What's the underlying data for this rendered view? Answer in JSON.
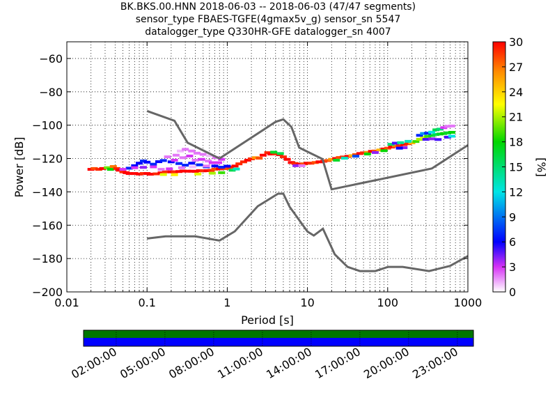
{
  "titles": [
    "BK.BKS.00.HNN   2018-06-03 -- 2018-06-03  (47/47 segments)",
    "sensor_type FBAES-TGFE(4gmax5v_g) sensor_sn 5547",
    "datalogger_type Q330HR-GFE datalogger_sn 4007"
  ],
  "chart_data": {
    "type": "heatmap",
    "xlabel": "Period [s]",
    "ylabel": "Power [dB]",
    "x_scale": "log",
    "xlim": [
      0.01,
      1000
    ],
    "ylim": [
      -200,
      -50
    ],
    "x_ticks": [
      {
        "value": 0.01,
        "label": "0.01"
      },
      {
        "value": 0.1,
        "label": "0.1"
      },
      {
        "value": 1,
        "label": "1"
      },
      {
        "value": 10,
        "label": "10"
      },
      {
        "value": 100,
        "label": "100"
      },
      {
        "value": 1000,
        "label": "1000"
      }
    ],
    "y_ticks": [
      -60,
      -80,
      -100,
      -120,
      -140,
      -160,
      -180,
      -200
    ],
    "grid": "dotted",
    "colorbar": {
      "label": "[%]",
      "min": 0,
      "max": 30,
      "ticks": [
        0,
        3,
        6,
        9,
        12,
        15,
        18,
        21,
        24,
        27,
        30
      ]
    },
    "noise_models": [
      {
        "points": [
          [
            0.1,
            -91.5
          ],
          [
            0.22,
            -97.4
          ],
          [
            0.32,
            -110.5
          ],
          [
            0.8,
            -120
          ],
          [
            4,
            -98
          ],
          [
            5,
            -96.5
          ],
          [
            6.3,
            -101
          ],
          [
            7.9,
            -113.5
          ],
          [
            15.4,
            -120.3
          ],
          [
            20,
            -138.5
          ],
          [
            354.8,
            -126
          ],
          [
            1000,
            -112
          ]
        ]
      },
      {
        "points": [
          [
            0.1,
            -168
          ],
          [
            0.17,
            -166.7
          ],
          [
            0.4,
            -166.7
          ],
          [
            0.8,
            -169.2
          ],
          [
            1.24,
            -163.7
          ],
          [
            2.4,
            -148.6
          ],
          [
            4.3,
            -141.1
          ],
          [
            5,
            -141.1
          ],
          [
            6,
            -149
          ],
          [
            10,
            -163.8
          ],
          [
            12,
            -166.2
          ],
          [
            15.6,
            -162.1
          ],
          [
            21.9,
            -177.5
          ],
          [
            31.6,
            -185
          ],
          [
            45,
            -187.5
          ],
          [
            70,
            -187.5
          ],
          [
            101,
            -185
          ],
          [
            154,
            -185
          ],
          [
            328,
            -187.5
          ],
          [
            600,
            -184.4
          ],
          [
            1000,
            -178.5
          ]
        ]
      }
    ],
    "psd_cells": [
      {
        "period": 0.02,
        "db": -126.5,
        "pct": 30
      },
      {
        "period": 0.022,
        "db": -126,
        "pct": 28
      },
      {
        "period": 0.025,
        "db": -126.5,
        "pct": 29
      },
      {
        "period": 0.028,
        "db": -126,
        "pct": 30
      },
      {
        "period": 0.032,
        "db": -125.5,
        "pct": 20
      },
      {
        "period": 0.035,
        "db": -126.5,
        "pct": 18
      },
      {
        "period": 0.038,
        "db": -124.8,
        "pct": 27
      },
      {
        "period": 0.042,
        "db": -126,
        "pct": 29
      },
      {
        "period": 0.045,
        "db": -127,
        "pct": 30
      },
      {
        "period": 0.05,
        "db": -128,
        "pct": 29
      },
      {
        "period": 0.055,
        "db": -128.5,
        "pct": 30
      },
      {
        "period": 0.06,
        "db": -129,
        "pct": 30
      },
      {
        "period": 0.07,
        "db": -129,
        "pct": 30
      },
      {
        "period": 0.08,
        "db": -129.3,
        "pct": 30
      },
      {
        "period": 0.09,
        "db": -129,
        "pct": 29
      },
      {
        "period": 0.1,
        "db": -129,
        "pct": 30
      },
      {
        "period": 0.11,
        "db": -129.4,
        "pct": 30
      },
      {
        "period": 0.13,
        "db": -129.2,
        "pct": 29
      },
      {
        "period": 0.15,
        "db": -128.6,
        "pct": 30
      },
      {
        "period": 0.17,
        "db": -128,
        "pct": 29
      },
      {
        "period": 0.2,
        "db": -128,
        "pct": 30
      },
      {
        "period": 0.22,
        "db": -128,
        "pct": 29
      },
      {
        "period": 0.25,
        "db": -127.8,
        "pct": 30
      },
      {
        "period": 0.28,
        "db": -127.5,
        "pct": 30
      },
      {
        "period": 0.32,
        "db": -127.6,
        "pct": 30
      },
      {
        "period": 0.36,
        "db": -127.6,
        "pct": 30
      },
      {
        "period": 0.4,
        "db": -127.7,
        "pct": 30
      },
      {
        "period": 0.45,
        "db": -127.3,
        "pct": 30
      },
      {
        "period": 0.5,
        "db": -127.4,
        "pct": 29
      },
      {
        "period": 0.56,
        "db": -127.3,
        "pct": 30
      },
      {
        "period": 0.63,
        "db": -127.1,
        "pct": 29
      },
      {
        "period": 0.7,
        "db": -126.4,
        "pct": 28
      },
      {
        "period": 0.8,
        "db": -126.2,
        "pct": 30
      },
      {
        "period": 0.9,
        "db": -126,
        "pct": 29
      },
      {
        "period": 1.0,
        "db": -126,
        "pct": 28
      },
      {
        "period": 1.1,
        "db": -125.2,
        "pct": 29
      },
      {
        "period": 1.25,
        "db": -124.5,
        "pct": 30
      },
      {
        "period": 1.4,
        "db": -123.2,
        "pct": 29
      },
      {
        "period": 1.6,
        "db": -122,
        "pct": 29
      },
      {
        "period": 1.8,
        "db": -121,
        "pct": 30
      },
      {
        "period": 2.0,
        "db": -120.2,
        "pct": 29
      },
      {
        "period": 2.25,
        "db": -119.5,
        "pct": 26
      },
      {
        "period": 2.5,
        "db": -119.8,
        "pct": 28
      },
      {
        "period": 2.8,
        "db": -118,
        "pct": 30
      },
      {
        "period": 3.2,
        "db": -116.5,
        "pct": 29
      },
      {
        "period": 3.5,
        "db": -117.3,
        "pct": 30
      },
      {
        "period": 4.0,
        "db": -117.2,
        "pct": 29
      },
      {
        "period": 4.5,
        "db": -117.7,
        "pct": 30
      },
      {
        "period": 5.0,
        "db": -119,
        "pct": 29
      },
      {
        "period": 5.6,
        "db": -120.5,
        "pct": 30
      },
      {
        "period": 6.3,
        "db": -122.4,
        "pct": 30
      },
      {
        "period": 7.0,
        "db": -123,
        "pct": 29
      },
      {
        "period": 8.0,
        "db": -123.4,
        "pct": 30
      },
      {
        "period": 9.0,
        "db": -123.2,
        "pct": 28
      },
      {
        "period": 10,
        "db": -122.8,
        "pct": 30
      },
      {
        "period": 11,
        "db": -122.8,
        "pct": 29
      },
      {
        "period": 12.5,
        "db": -122.4,
        "pct": 28
      },
      {
        "period": 14,
        "db": -122,
        "pct": 30
      },
      {
        "period": 16,
        "db": -121.6,
        "pct": 30
      },
      {
        "period": 18,
        "db": -121.2,
        "pct": 28
      },
      {
        "period": 20,
        "db": -120.5,
        "pct": 26
      },
      {
        "period": 22.5,
        "db": -120,
        "pct": 30
      },
      {
        "period": 25,
        "db": -119.4,
        "pct": 28
      },
      {
        "period": 28,
        "db": -119.1,
        "pct": 29
      },
      {
        "period": 32,
        "db": -118.7,
        "pct": 30
      },
      {
        "period": 36,
        "db": -118.3,
        "pct": 25
      },
      {
        "period": 40,
        "db": -117.7,
        "pct": 28
      },
      {
        "period": 45,
        "db": -117,
        "pct": 30
      },
      {
        "period": 50,
        "db": -116.6,
        "pct": 29
      },
      {
        "period": 56,
        "db": -116.3,
        "pct": 26
      },
      {
        "period": 63,
        "db": -115.7,
        "pct": 30
      },
      {
        "period": 70,
        "db": -115.5,
        "pct": 28
      },
      {
        "period": 80,
        "db": -114.9,
        "pct": 25
      },
      {
        "period": 90,
        "db": -114.3,
        "pct": 30
      },
      {
        "period": 100,
        "db": -113.8,
        "pct": 28
      },
      {
        "period": 112,
        "db": -113.1,
        "pct": 30
      },
      {
        "period": 125,
        "db": -112.6,
        "pct": 27
      },
      {
        "period": 140,
        "db": -112.3,
        "pct": 29
      },
      {
        "period": 160,
        "db": -111.6,
        "pct": 30
      },
      {
        "period": 180,
        "db": -111.1,
        "pct": 29
      },
      {
        "period": 200,
        "db": -110.6,
        "pct": 25
      },
      {
        "period": 225,
        "db": -109.8,
        "pct": 19
      },
      {
        "period": 250,
        "db": -108.5,
        "pct": 21
      },
      {
        "period": 280,
        "db": -107.4,
        "pct": 22
      },
      {
        "period": 315,
        "db": -106.7,
        "pct": 19
      },
      {
        "period": 355,
        "db": -106.2,
        "pct": 17
      },
      {
        "period": 400,
        "db": -105.6,
        "pct": 16
      },
      {
        "period": 450,
        "db": -105.3,
        "pct": 17
      },
      {
        "period": 500,
        "db": -105,
        "pct": 18
      },
      {
        "period": 560,
        "db": -104.6,
        "pct": 17
      },
      {
        "period": 630,
        "db": -104.3,
        "pct": 18
      },
      {
        "period": 0.06,
        "db": -125.8,
        "pct": 7
      },
      {
        "period": 0.07,
        "db": -124.3,
        "pct": 6
      },
      {
        "period": 0.08,
        "db": -122.8,
        "pct": 6
      },
      {
        "period": 0.09,
        "db": -121.5,
        "pct": 7
      },
      {
        "period": 0.1,
        "db": -122.2,
        "pct": 6
      },
      {
        "period": 0.12,
        "db": -123.4,
        "pct": 7
      },
      {
        "period": 0.14,
        "db": -121.9,
        "pct": 6
      },
      {
        "period": 0.16,
        "db": -121.2,
        "pct": 7
      },
      {
        "period": 0.2,
        "db": -122,
        "pct": 6
      },
      {
        "period": 0.25,
        "db": -123,
        "pct": 7
      },
      {
        "period": 0.3,
        "db": -124,
        "pct": 7
      },
      {
        "period": 0.36,
        "db": -122.8,
        "pct": 6
      },
      {
        "period": 0.45,
        "db": -123.8,
        "pct": 7
      },
      {
        "period": 0.55,
        "db": -125,
        "pct": 7
      },
      {
        "period": 0.7,
        "db": -124.5,
        "pct": 6
      },
      {
        "period": 0.85,
        "db": -125.2,
        "pct": 7
      },
      {
        "period": 1.0,
        "db": -124.6,
        "pct": 6
      },
      {
        "period": 0.05,
        "db": -126.5,
        "pct": 3
      },
      {
        "period": 0.07,
        "db": -125.5,
        "pct": 3
      },
      {
        "period": 0.09,
        "db": -125.3,
        "pct": 4
      },
      {
        "period": 0.12,
        "db": -125,
        "pct": 3
      },
      {
        "period": 0.15,
        "db": -126.5,
        "pct": 2
      },
      {
        "period": 0.19,
        "db": -126.2,
        "pct": 3
      },
      {
        "period": 0.23,
        "db": -118,
        "pct": 2
      },
      {
        "period": 0.26,
        "db": -115.5,
        "pct": 1
      },
      {
        "period": 0.3,
        "db": -114.5,
        "pct": 2
      },
      {
        "period": 0.36,
        "db": -115.5,
        "pct": 2
      },
      {
        "period": 0.42,
        "db": -116.8,
        "pct": 2
      },
      {
        "period": 0.5,
        "db": -117.5,
        "pct": 2
      },
      {
        "period": 0.6,
        "db": -118.3,
        "pct": 1
      },
      {
        "period": 0.72,
        "db": -119.5,
        "pct": 2
      },
      {
        "period": 0.85,
        "db": -120.5,
        "pct": 3
      },
      {
        "period": 0.18,
        "db": -119,
        "pct": 2
      },
      {
        "period": 0.22,
        "db": -121,
        "pct": 3
      },
      {
        "period": 0.28,
        "db": -119.5,
        "pct": 2
      },
      {
        "period": 0.34,
        "db": -118.5,
        "pct": 3
      },
      {
        "period": 0.4,
        "db": -121,
        "pct": 2
      },
      {
        "period": 0.48,
        "db": -120.5,
        "pct": 3
      },
      {
        "period": 0.58,
        "db": -121.5,
        "pct": 2
      },
      {
        "period": 0.27,
        "db": -125.5,
        "pct": 2
      },
      {
        "period": 0.37,
        "db": -125,
        "pct": 1
      },
      {
        "period": 0.55,
        "db": -124.5,
        "pct": 2
      },
      {
        "period": 0.65,
        "db": -122.5,
        "pct": 3
      },
      {
        "period": 0.78,
        "db": -122.5,
        "pct": 3
      },
      {
        "period": 1.15,
        "db": -127,
        "pct": 16
      },
      {
        "period": 1.3,
        "db": -126.3,
        "pct": 13
      },
      {
        "period": 0.16,
        "db": -129.6,
        "pct": 22
      },
      {
        "period": 0.22,
        "db": -129.7,
        "pct": 23
      },
      {
        "period": 0.43,
        "db": -129.3,
        "pct": 22
      },
      {
        "period": 0.65,
        "db": -128.8,
        "pct": 21
      },
      {
        "period": 0.85,
        "db": -128.5,
        "pct": 19
      },
      {
        "period": 7.2,
        "db": -124.3,
        "pct": 4
      },
      {
        "period": 8.5,
        "db": -124.3,
        "pct": 2
      },
      {
        "period": 3.8,
        "db": -116.2,
        "pct": 17
      },
      {
        "period": 4.6,
        "db": -117,
        "pct": 16
      },
      {
        "period": 23,
        "db": -121,
        "pct": 17
      },
      {
        "period": 29,
        "db": -119.8,
        "pct": 13
      },
      {
        "period": 40,
        "db": -118.6,
        "pct": 8
      },
      {
        "period": 56,
        "db": -117.3,
        "pct": 18
      },
      {
        "period": 70,
        "db": -116.4,
        "pct": 4
      },
      {
        "period": 90,
        "db": -115.3,
        "pct": 18
      },
      {
        "period": 110,
        "db": -111.5,
        "pct": 15
      },
      {
        "period": 125,
        "db": -110.8,
        "pct": 5
      },
      {
        "period": 145,
        "db": -110.5,
        "pct": 14
      },
      {
        "period": 180,
        "db": -109.7,
        "pct": 13
      },
      {
        "period": 160,
        "db": -113.5,
        "pct": 4
      },
      {
        "period": 140,
        "db": -113.8,
        "pct": 6
      },
      {
        "period": 250,
        "db": -106.1,
        "pct": 7
      },
      {
        "period": 280,
        "db": -105,
        "pct": 10
      },
      {
        "period": 315,
        "db": -104.8,
        "pct": 7
      },
      {
        "period": 355,
        "db": -104.2,
        "pct": 12
      },
      {
        "period": 400,
        "db": -102.8,
        "pct": 16
      },
      {
        "period": 450,
        "db": -102.4,
        "pct": 15
      },
      {
        "period": 500,
        "db": -101.5,
        "pct": 3
      },
      {
        "period": 560,
        "db": -100.7,
        "pct": 2
      },
      {
        "period": 630,
        "db": -100.5,
        "pct": 2
      },
      {
        "period": 300,
        "db": -108.5,
        "pct": 5
      },
      {
        "period": 355,
        "db": -108.2,
        "pct": 4
      },
      {
        "period": 425,
        "db": -108.6,
        "pct": 5
      },
      {
        "period": 560,
        "db": -107.2,
        "pct": 5
      },
      {
        "period": 630,
        "db": -106.6,
        "pct": 12
      }
    ]
  },
  "timeline": {
    "tick_labels": [
      "02:00:00",
      "05:00:00",
      "08:00:00",
      "11:00:00",
      "14:00:00",
      "17:00:00",
      "20:00:00",
      "23:00:00"
    ],
    "data_color": "#007700",
    "gap_color": "#0000ff"
  }
}
